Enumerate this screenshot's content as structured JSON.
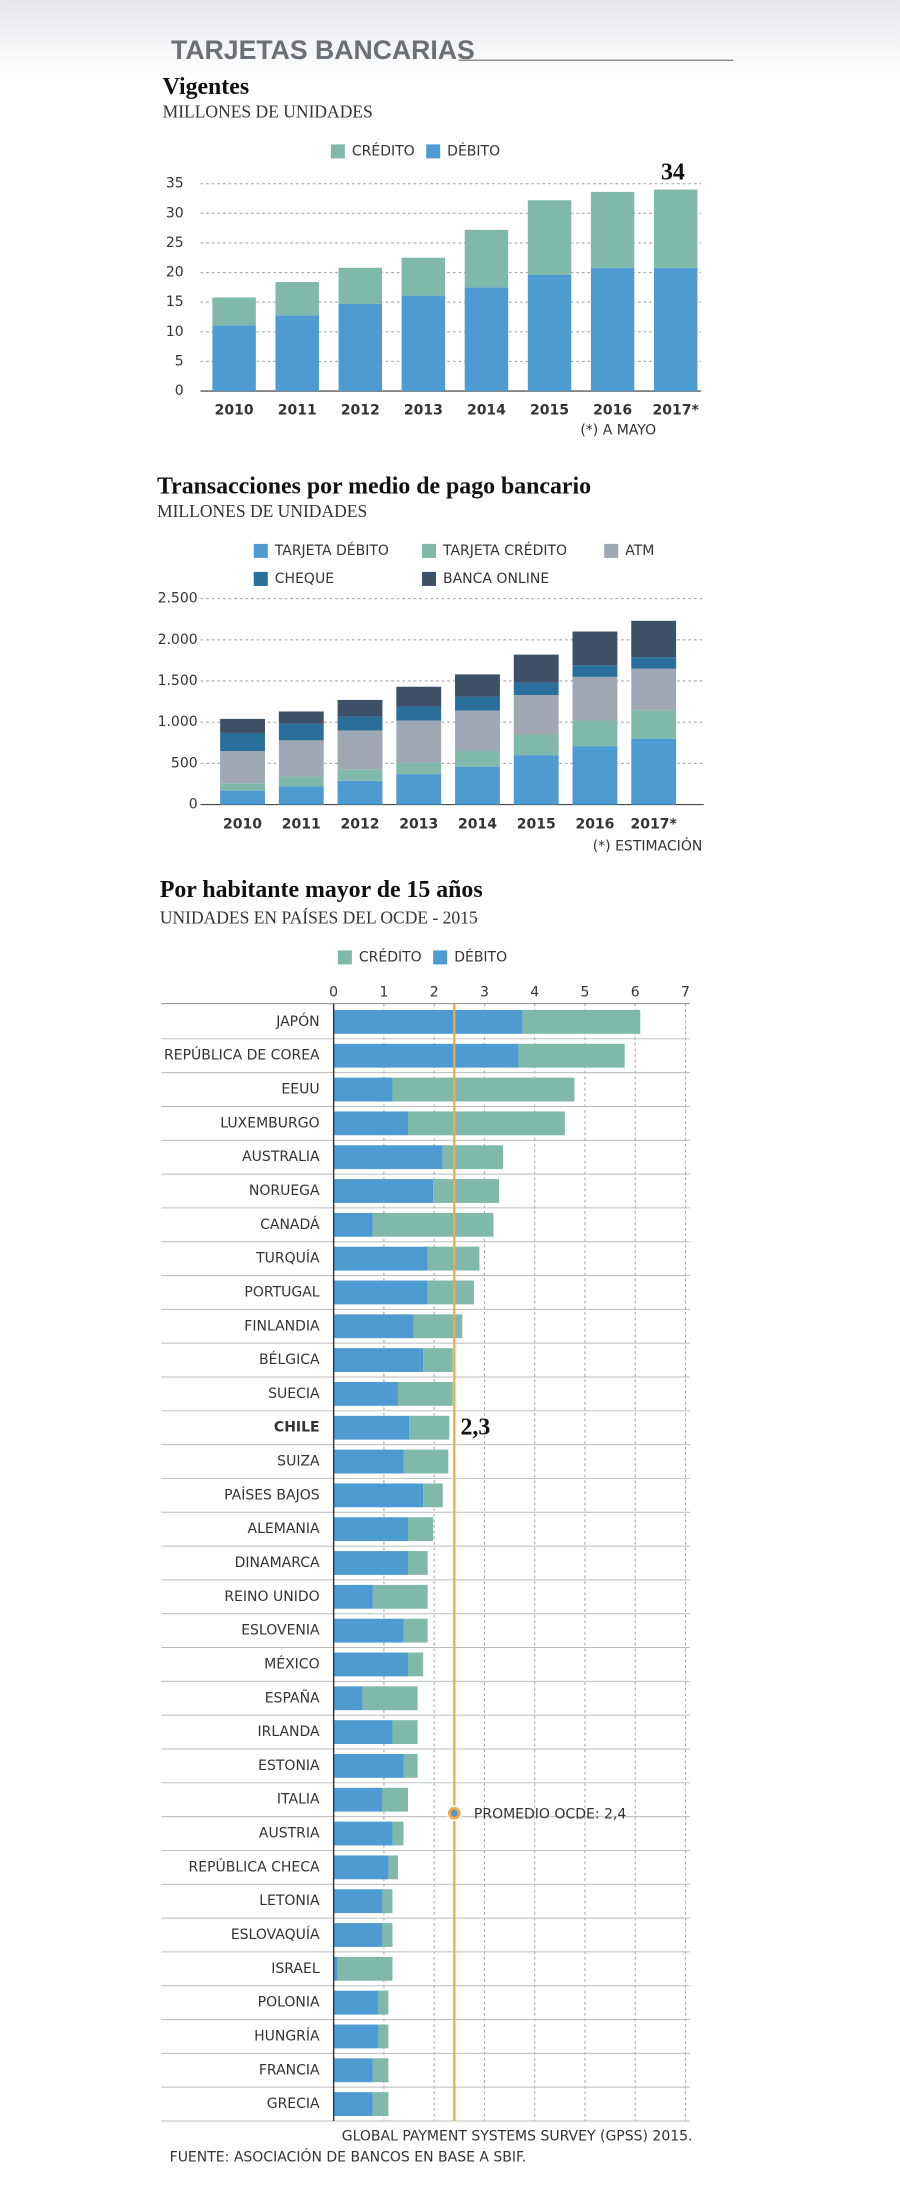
{
  "header": {
    "title": "TARJETAS BANCARIAS"
  },
  "chart_data": [
    {
      "type": "stacked_bar",
      "title": "Vigentes",
      "subtitle": "MILLONES DE UNIDADES",
      "categories": [
        "2010",
        "2011",
        "2012",
        "2013",
        "2014",
        "2015",
        "2016",
        "2017*"
      ],
      "series": [
        {
          "name": "DÉBITO",
          "color": "#4e9bd1",
          "values": [
            11.1,
            12.8,
            14.7,
            16.1,
            17.5,
            19.6,
            20.8,
            20.8
          ]
        },
        {
          "name": "CRÉDITO",
          "color": "#80b9aa",
          "values": [
            4.7,
            5.6,
            6.1,
            6.4,
            9.7,
            12.6,
            12.8,
            13.2
          ]
        }
      ],
      "legend_reverse": true,
      "ylim": [
        0,
        35
      ],
      "yticks": [
        0,
        5,
        10,
        15,
        20,
        25,
        30,
        35
      ],
      "grid": true,
      "total_label": "34",
      "footnote": "(*) A MAYO"
    },
    {
      "type": "stacked_bar",
      "title": "Transacciones por medio de pago bancario",
      "subtitle": "MILLONES DE UNIDADES",
      "categories": [
        "2010",
        "2011",
        "2012",
        "2013",
        "2014",
        "2015",
        "2016",
        "2017*"
      ],
      "series": [
        {
          "name": "TARJETA DÉBITO",
          "color": "#4e9bd1",
          "values": [
            170,
            220,
            290,
            370,
            460,
            600,
            710,
            800
          ]
        },
        {
          "name": "TARJETA CRÉDITO",
          "color": "#80b9aa",
          "values": [
            90,
            120,
            140,
            140,
            190,
            250,
            310,
            340
          ]
        },
        {
          "name": "ATM",
          "color": "#9ea7b3",
          "values": [
            390,
            440,
            470,
            510,
            490,
            480,
            530,
            510
          ]
        },
        {
          "name": "CHEQUE",
          "color": "#2a6f9c",
          "values": [
            220,
            200,
            170,
            170,
            170,
            150,
            140,
            140
          ]
        },
        {
          "name": "BANCA ONLINE",
          "color": "#3e4f68",
          "values": [
            170,
            150,
            200,
            240,
            270,
            340,
            410,
            440
          ]
        }
      ],
      "ylim": [
        0,
        2500
      ],
      "yticks": [
        0,
        500,
        {
          "value": 1000,
          "label": "1.000"
        },
        {
          "value": 1500,
          "label": "1.500"
        },
        {
          "value": 2000,
          "label": "2.000"
        },
        {
          "value": 2500,
          "label": "2.500"
        }
      ],
      "grid": true,
      "footnote": "(*) ESTIMACIÓN"
    },
    {
      "type": "stacked_barh",
      "title": "Por habitante mayor de 15 años",
      "subtitle": "UNIDADES EN PAÍSES DEL OCDE - 2015",
      "categories": [
        "JAPÓN",
        "REPÚBLICA DE COREA",
        "EEUU",
        "LUXEMBURGO",
        "AUSTRALIA",
        "NORUEGA",
        "CANADÁ",
        "TURQUÍA",
        "PORTUGAL",
        "FINLANDIA",
        "BÉLGICA",
        "SUECIA",
        "CHILE",
        "SUIZA",
        "PAÍSES BAJOS",
        "ALEMANIA",
        "DINAMARCA",
        "REINO UNIDO",
        "ESLOVENIA",
        "MÉXICO",
        "ESPAÑA",
        "IRLANDA",
        "ESTONIA",
        "ITALIA",
        "AUSTRIA",
        "REPÚBLICA CHECA",
        "LETONIA",
        "ESLOVAQUÍA",
        "ISRAEL",
        "POLONIA",
        "HUNGRÍA",
        "FRANCIA",
        "GRECIA"
      ],
      "series": [
        {
          "name": "DÉBITO",
          "color": "#4e9bd1",
          "values": [
            3.76,
            3.68,
            1.17,
            1.48,
            2.17,
            1.98,
            0.78,
            1.87,
            1.87,
            1.59,
            1.78,
            1.28,
            1.5,
            1.39,
            1.78,
            1.48,
            1.48,
            0.78,
            1.39,
            1.48,
            0.58,
            1.17,
            1.39,
            0.97,
            1.17,
            1.09,
            0.97,
            0.97,
            0.08,
            0.89,
            0.89,
            0.78,
            0.78
          ]
        },
        {
          "name": "CRÉDITO",
          "color": "#80b9aa",
          "values": [
            2.34,
            2.11,
            3.62,
            3.12,
            1.2,
            1.31,
            2.4,
            1.03,
            0.92,
            0.97,
            0.59,
            1.09,
            0.8,
            0.89,
            0.39,
            0.5,
            0.39,
            1.09,
            0.48,
            0.3,
            1.09,
            0.5,
            0.28,
            0.51,
            0.22,
            0.19,
            0.2,
            0.2,
            1.09,
            0.2,
            0.2,
            0.31,
            0.31
          ]
        }
      ],
      "legend_reverse": true,
      "xlim": [
        0,
        7
      ],
      "xticks": [
        0,
        1,
        2,
        3,
        4,
        5,
        6,
        7
      ],
      "grid": true,
      "average": 2.4,
      "average_label": "PROMEDIO OCDE: 2,4",
      "highlight": "CHILE",
      "highlight_label": "2,3"
    }
  ],
  "footer": {
    "sources": [
      "GLOBAL PAYMENT SYSTEMS SURVEY (GPSS) 2015.",
      "FUENTE: ASOCIACIÓN DE BANCOS EN BASE A SBIF."
    ]
  }
}
